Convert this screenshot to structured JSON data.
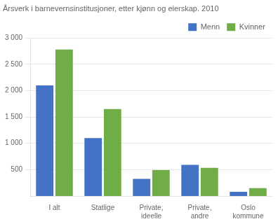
{
  "chart_data": {
    "type": "bar",
    "title": "Årsverk i barnevernsinstitusjoner, etter kjønn og eierskap. 2010",
    "categories": [
      "I alt",
      "Statlige",
      "Private,\nideelle",
      "Private,\nandre",
      "Oslo\nkommune"
    ],
    "series": [
      {
        "name": "Menn",
        "color": "#4472C4",
        "values": [
          2100,
          1100,
          325,
          590,
          80
        ]
      },
      {
        "name": "Kvinner",
        "color": "#70AD47",
        "values": [
          2780,
          1650,
          490,
          535,
          150
        ]
      }
    ],
    "ylim": [
      0,
      3000
    ],
    "yticks": [
      500,
      {
        "value": 1000,
        "label": "1 000"
      },
      {
        "value": 1500,
        "label": "1 500"
      },
      {
        "value": 2000,
        "label": "2 000"
      },
      {
        "value": 2500,
        "label": "2 500"
      },
      {
        "value": 3000,
        "label": "3 000"
      }
    ],
    "grid": true,
    "legend": "upper right"
  }
}
